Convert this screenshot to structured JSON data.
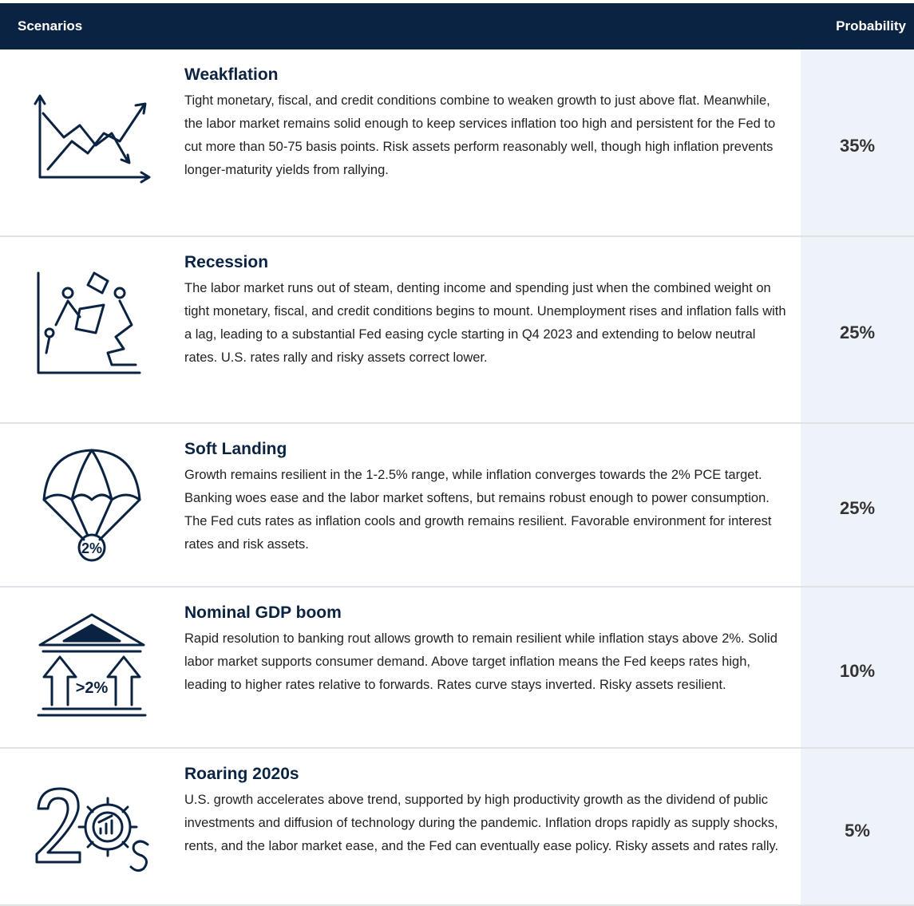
{
  "header": {
    "scenarios": "Scenarios",
    "probability": "Probability"
  },
  "rows": [
    {
      "title": "Weakflation",
      "description": "Tight monetary, fiscal, and credit conditions combine to weaken growth to just above flat. Meanwhile, the labor market remains solid enough to keep services inflation too high and persistent for the Fed to cut more than 50-75 basis points. Risk assets perform reasonably well, though high inflation prevents longer-maturity yields from rallying.",
      "probability": "35%"
    },
    {
      "title": "Recession",
      "description": "The labor market runs out of steam, denting income and spending just when the combined weight on tight monetary, fiscal, and credit conditions begins to mount. Unemployment rises and inflation falls with a lag, leading to a substantial Fed easing cycle starting in Q4 2023 and extending to below neutral rates. U.S. rates rally and risky assets correct lower.",
      "probability": "25%"
    },
    {
      "title": "Soft Landing",
      "description": "Growth remains resilient in the 1-2.5% range, while inflation converges towards the 2% PCE target. Banking woes ease and the labor market softens, but remains robust enough to power consumption. The Fed cuts rates as inflation cools and growth remains resilient. Favorable environment for interest rates and risk assets.",
      "probability": "25%"
    },
    {
      "title": "Nominal GDP boom",
      "description": "Rapid resolution to banking rout allows growth to remain resilient while inflation stays above 2%. Solid labor market supports consumer demand. Above target inflation means the Fed keeps rates high, leading to higher rates relative to forwards. Rates curve stays inverted. Risky assets resilient.",
      "probability": "10%"
    },
    {
      "title": "Roaring 2020s",
      "description": "U.S. growth accelerates above trend, supported by high productivity growth as the dividend of public investments and diffusion of technology during the pandemic. Inflation drops rapidly as supply shocks, rents, and the labor market ease, and the Fed can eventually ease policy. Risky assets and rates rally.",
      "probability": "5%"
    }
  ]
}
